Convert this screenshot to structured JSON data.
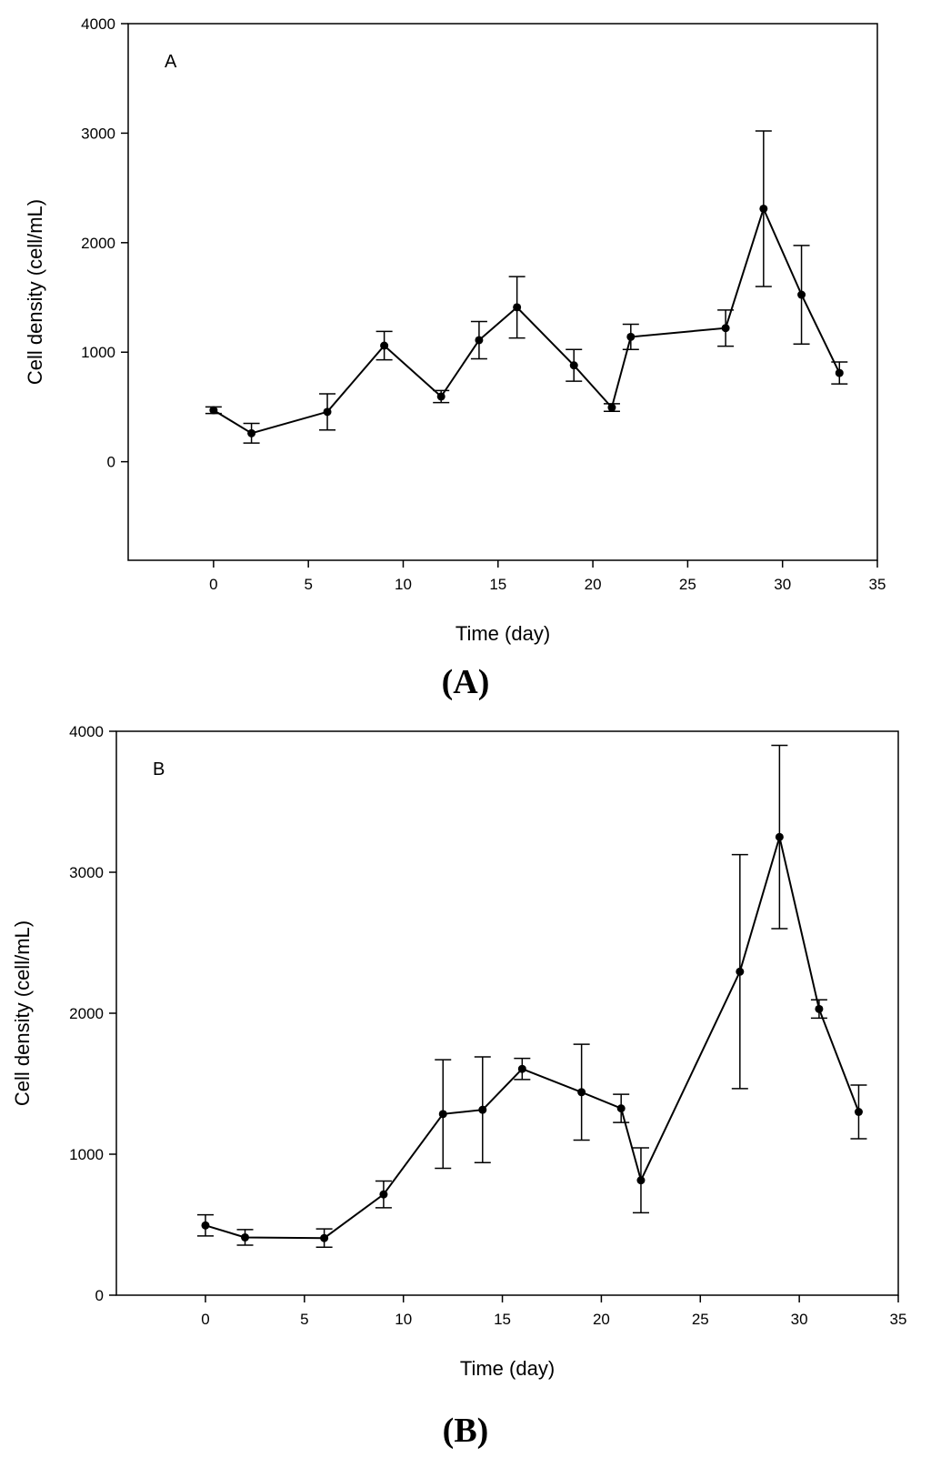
{
  "chart_data": [
    {
      "type": "line",
      "panel_label": "A",
      "caption": "(A)",
      "xlabel": "Time (day)",
      "ylabel": "Cell density (cell/mL)",
      "xlim": [
        -4.5,
        35
      ],
      "ylim": [
        -900,
        4000
      ],
      "xticks": [
        0,
        5,
        10,
        15,
        20,
        25,
        30,
        35
      ],
      "yticks": [
        0,
        1000,
        2000,
        3000,
        4000
      ],
      "x": [
        0,
        2,
        6,
        9,
        12,
        14,
        16,
        19,
        21,
        22,
        27,
        29,
        31,
        33
      ],
      "values": [
        470,
        260,
        455,
        1060,
        595,
        1110,
        1410,
        880,
        495,
        1140,
        1220,
        2310,
        1525,
        810
      ],
      "errors": [
        30,
        90,
        165,
        130,
        55,
        170,
        280,
        145,
        35,
        115,
        165,
        710,
        450,
        100
      ]
    },
    {
      "type": "line",
      "panel_label": "B",
      "caption": "(B)",
      "xlabel": "Time (day)",
      "ylabel": "Cell density (cell/mL)",
      "xlim": [
        -4.5,
        35
      ],
      "ylim": [
        0,
        4000
      ],
      "xticks": [
        0,
        5,
        10,
        15,
        20,
        25,
        30,
        35
      ],
      "yticks": [
        0,
        1000,
        2000,
        3000,
        4000
      ],
      "x": [
        0,
        2,
        6,
        9,
        12,
        14,
        16,
        19,
        21,
        22,
        27,
        29,
        31,
        33
      ],
      "values": [
        495,
        410,
        405,
        715,
        1285,
        1315,
        1605,
        1440,
        1325,
        815,
        2295,
        3250,
        2030,
        1300
      ],
      "errors": [
        75,
        55,
        65,
        95,
        385,
        375,
        75,
        340,
        100,
        230,
        830,
        650,
        65,
        190
      ]
    }
  ]
}
